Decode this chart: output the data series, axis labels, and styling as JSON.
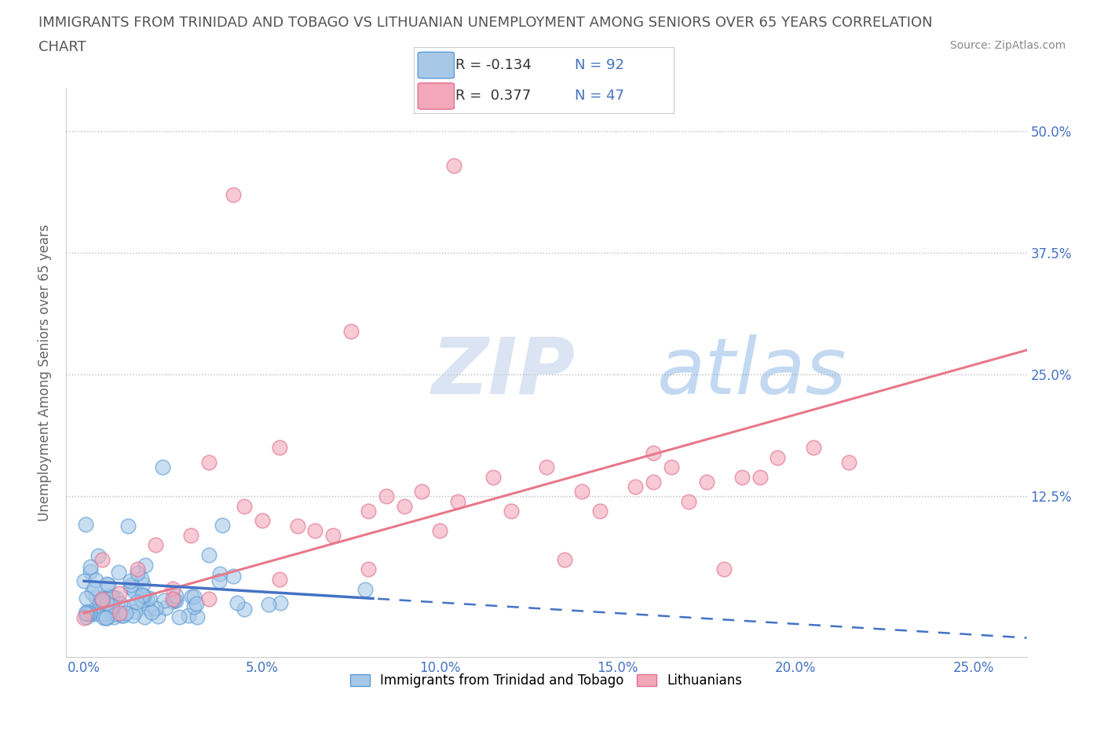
{
  "title_line1": "IMMIGRANTS FROM TRINIDAD AND TOBAGO VS LITHUANIAN UNEMPLOYMENT AMONG SENIORS OVER 65 YEARS CORRELATION",
  "title_line2": "CHART",
  "source": "Source: ZipAtlas.com",
  "ylabel": "Unemployment Among Seniors over 65 years",
  "x_ticks": [
    0.0,
    0.05,
    0.1,
    0.15,
    0.2,
    0.25
  ],
  "x_tick_labels": [
    "0.0%",
    "5.0%",
    "10.0%",
    "15.0%",
    "20.0%",
    "25.0%"
  ],
  "y_ticks": [
    0.0,
    0.125,
    0.25,
    0.375,
    0.5
  ],
  "y_tick_labels": [
    "",
    "12.5%",
    "25.0%",
    "37.5%",
    "50.0%"
  ],
  "xlim": [
    -0.005,
    0.265
  ],
  "ylim": [
    -0.04,
    0.545
  ],
  "R_blue": -0.134,
  "N_blue": 92,
  "R_pink": 0.377,
  "N_pink": 47,
  "blue_color": "#A8C8E8",
  "pink_color": "#F4A7B9",
  "blue_edge_color": "#5B9BD5",
  "pink_edge_color": "#E07090",
  "blue_line_color": "#4472C4",
  "pink_line_color": "#E8788A",
  "legend_label_blue": "Immigrants from Trinidad and Tobago",
  "legend_label_pink": "Lithuanians",
  "watermark_zip": "ZIP",
  "watermark_atlas": "atlas",
  "background_color": "#FFFFFF",
  "grid_color": "#BBBBBB",
  "title_color": "#555555",
  "axis_label_color": "#666666",
  "tick_color": "#4472C4",
  "source_color": "#888888"
}
